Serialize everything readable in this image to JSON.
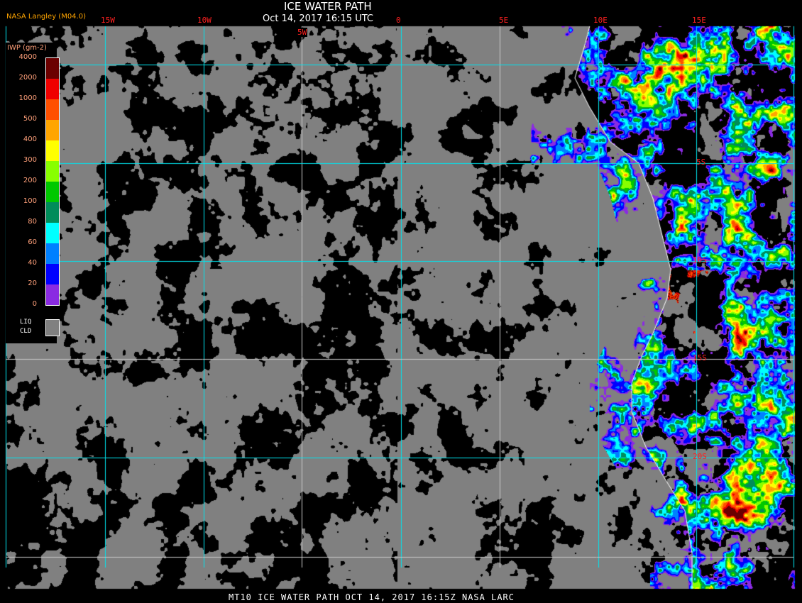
{
  "header": {
    "title": "ICE WATER PATH",
    "datetime": "Oct 14, 2017 16:15 UTC",
    "credit": "NASA Langley (M04.0)"
  },
  "grid": {
    "longitudes": [
      "15W",
      "10W",
      "5W",
      "0",
      "5E",
      "10E",
      "15E"
    ],
    "latitudes": [
      "5S",
      "10S",
      "15S",
      "20S"
    ],
    "line_color": "#00e5ee"
  },
  "legend": {
    "title": "IWP (gm-2)",
    "ticks": [
      "4000",
      "2000",
      "1000",
      "500",
      "400",
      "300",
      "200",
      "100",
      "80",
      "60",
      "40",
      "20",
      "0"
    ],
    "colors": [
      "#6b0000",
      "#f00000",
      "#ff5000",
      "#ffa500",
      "#ffff00",
      "#88ff00",
      "#00c800",
      "#008c5a",
      "#00ffff",
      "#0080ff",
      "#0000ff",
      "#8a2be2"
    ],
    "liquid_cloud_label_1": "LIQ",
    "liquid_cloud_label_2": "CLD",
    "liquid_cloud_color": "#808080"
  },
  "footer": "MT10  ICE WATER PATH   OCT 14, 2017 16:15Z   NASA LARC"
}
